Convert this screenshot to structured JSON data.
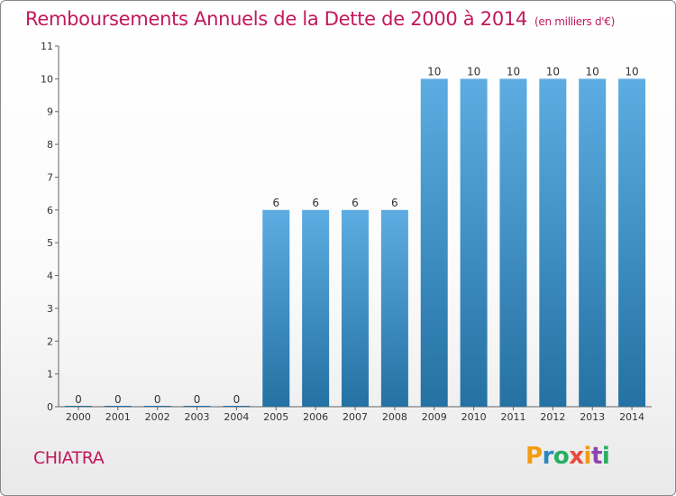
{
  "header": {
    "title": "Remboursements Annuels de la Dette de 2000 à 2014",
    "unit": "(en milliers d'€)"
  },
  "footer": {
    "commune": "CHIATRA",
    "logo_text": "Proxiti",
    "logo_colors": [
      "#f39c12",
      "#2e86c1",
      "#27ae60",
      "#e74c3c",
      "#f39c12",
      "#8e44ad",
      "#27ae60"
    ]
  },
  "colors": {
    "title": "#c2185b",
    "bar_light": "#5dade2",
    "bar_dark": "#2471a3"
  },
  "chart_data": {
    "type": "bar",
    "title": "Remboursements Annuels de la Dette de 2000 à 2014",
    "categories": [
      "2000",
      "2001",
      "2002",
      "2003",
      "2004",
      "2005",
      "2006",
      "2007",
      "2008",
      "2009",
      "2010",
      "2011",
      "2012",
      "2013",
      "2014"
    ],
    "values": [
      0,
      0,
      0,
      0,
      0,
      6,
      6,
      6,
      6,
      10,
      10,
      10,
      10,
      10,
      10
    ],
    "ylim": [
      0,
      11
    ],
    "yticks": [
      0,
      1,
      2,
      3,
      4,
      5,
      6,
      7,
      8,
      9,
      10,
      11
    ],
    "grid": false
  }
}
